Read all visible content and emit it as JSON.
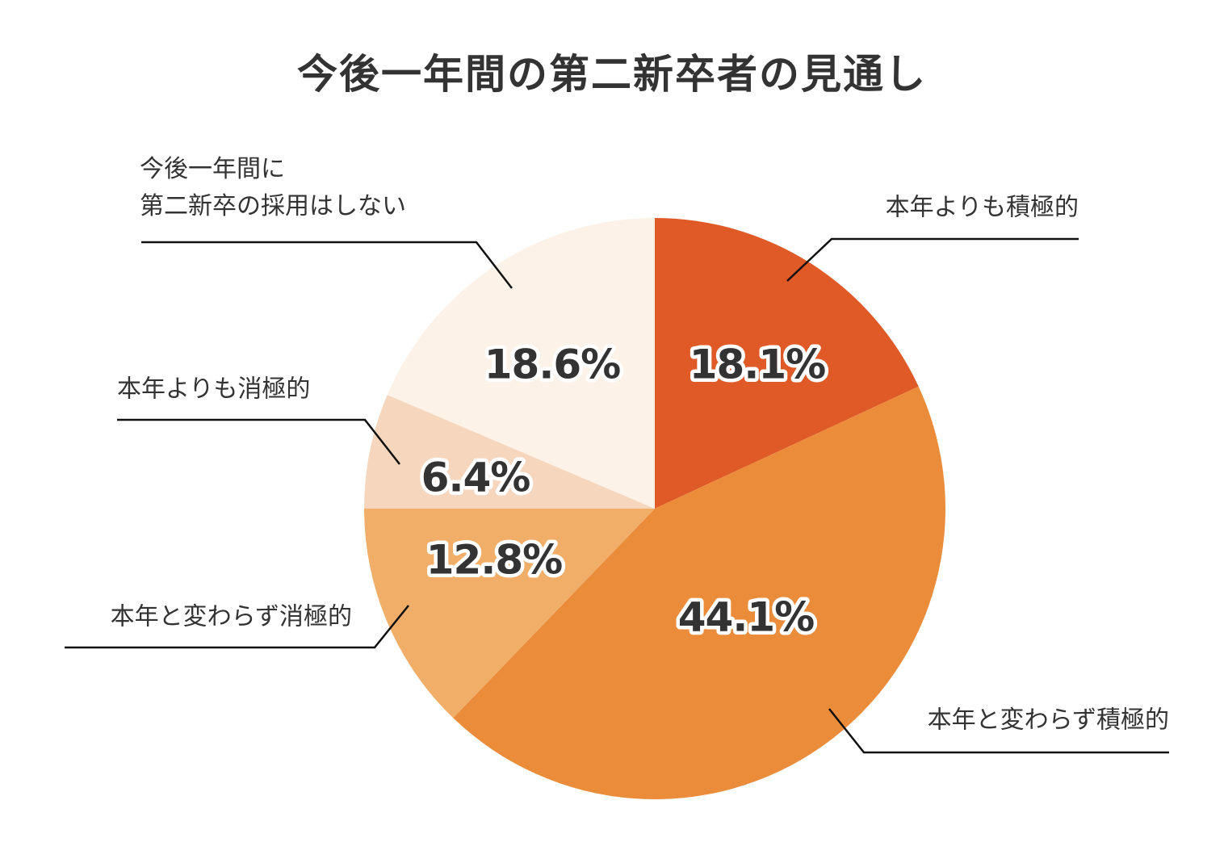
{
  "chart_data": {
    "type": "pie",
    "title": "今後一年間の第二新卒者の見通し",
    "slices": [
      {
        "label": "本年よりも積極的",
        "value": 18.1,
        "value_label": "18.1%",
        "color": "#df5a27"
      },
      {
        "label": "本年と変わらず積極的",
        "value": 44.1,
        "value_label": "44.1%",
        "color": "#eb8c3b"
      },
      {
        "label": "本年と変わらず消極的",
        "value": 12.8,
        "value_label": "12.8%",
        "color": "#f0ae68"
      },
      {
        "label": "本年よりも消極的",
        "value": 6.4,
        "value_label": "6.4%",
        "color": "#f6d6bd"
      },
      {
        "label": "今後一年間に第二新卒の採用はしない",
        "label_lines": [
          "今後一年間に",
          "第二新卒の採用はしない"
        ],
        "value": 18.6,
        "value_label": "18.6%",
        "color": "#fdf2e7"
      }
    ],
    "start_angle": "12 o'clock",
    "direction": "clockwise"
  }
}
